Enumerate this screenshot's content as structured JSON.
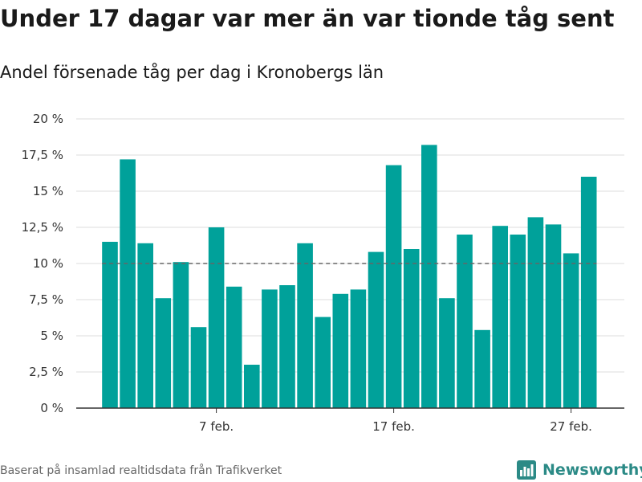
{
  "header": {
    "title": "Under 17 dagar var mer än var tionde tåg sent",
    "subtitle": "Andel försenade tåg per dag i Kronobergs län"
  },
  "footer": {
    "source": "Baserat på insamlad realtidsdata från Trafikverket",
    "brand": "Newsworthy"
  },
  "colors": {
    "bar": "#00a19a",
    "grid": "#dddddd",
    "reference_line": "#666666",
    "axis": "#333333"
  },
  "chart_data": {
    "type": "bar",
    "x": [
      1,
      2,
      3,
      4,
      5,
      6,
      7,
      8,
      9,
      10,
      11,
      12,
      13,
      14,
      15,
      16,
      17,
      18,
      19,
      20,
      21,
      22,
      23,
      24,
      25,
      26,
      27,
      28
    ],
    "x_unit": "februari",
    "values": [
      11.5,
      17.2,
      11.4,
      7.6,
      10.1,
      5.6,
      12.5,
      8.4,
      3.0,
      8.2,
      8.5,
      11.4,
      6.3,
      7.9,
      8.2,
      10.8,
      16.8,
      11.0,
      18.2,
      7.6,
      12.0,
      5.4,
      12.6,
      12.0,
      13.2,
      12.7,
      10.7,
      16.0
    ],
    "reference_line": 10,
    "ylim": [
      0,
      20
    ],
    "y_ticks": [
      0,
      2.5,
      5,
      7.5,
      10,
      12.5,
      15,
      17.5,
      20
    ],
    "y_tick_labels": [
      "0 %",
      "2,5 %",
      "5 %",
      "7,5 %",
      "10 %",
      "12,5 %",
      "15 %",
      "17,5 %",
      "20 %"
    ],
    "x_ticks": [
      7,
      17,
      27
    ],
    "x_tick_labels": [
      "7 feb.",
      "17 feb.",
      "27 feb."
    ],
    "title": "Under 17 dagar var mer än var tionde tåg sent",
    "subtitle": "Andel försenade tåg per dag i Kronobergs län",
    "xlabel": "",
    "ylabel": "",
    "grid": true,
    "legend": "none"
  }
}
